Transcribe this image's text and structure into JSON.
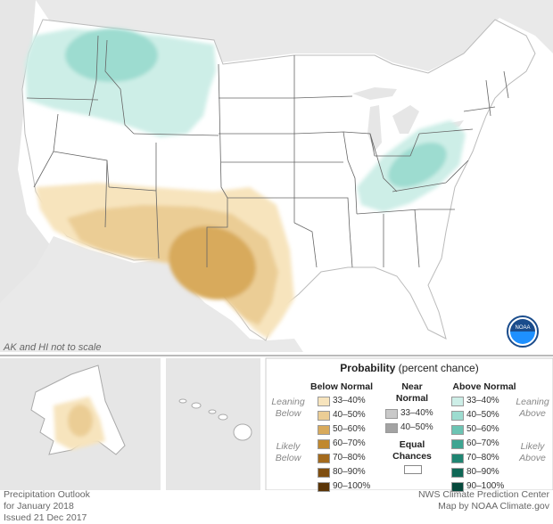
{
  "note": "AK and HI not to scale",
  "footer_left": [
    "Precipitation Outlook",
    "for January 2018",
    "Issued 21 Dec 2017"
  ],
  "footer_right": [
    "NWS Climate Prediction Center",
    "Map by NOAA Climate.gov"
  ],
  "legend": {
    "title_bold": "Probability",
    "title_rest": "(percent chance)",
    "below_header": "Below Normal",
    "near_header": [
      "Near",
      "Normal"
    ],
    "above_header": "Above Normal",
    "leaning_below": [
      "Leaning",
      "Below"
    ],
    "likely_below": [
      "Likely",
      "Below"
    ],
    "leaning_above": [
      "Leaning",
      "Above"
    ],
    "likely_above": [
      "Likely",
      "Above"
    ],
    "equal_chances": [
      "Equal",
      "Chances"
    ],
    "below": [
      {
        "label": "33–40%",
        "color": "#f7e4bd"
      },
      {
        "label": "40–50%",
        "color": "#ebcd95"
      },
      {
        "label": "50–60%",
        "color": "#d8aa5c"
      },
      {
        "label": "60–70%",
        "color": "#c0882f"
      },
      {
        "label": "70–80%",
        "color": "#a36a1d"
      },
      {
        "label": "80–90%",
        "color": "#7f4e10"
      },
      {
        "label": "90–100%",
        "color": "#5a3508"
      }
    ],
    "near": [
      {
        "label": "33–40%",
        "color": "#c9c9c9"
      },
      {
        "label": "40–50%",
        "color": "#a3a3a3"
      }
    ],
    "above": [
      {
        "label": "33–40%",
        "color": "#cdeee7"
      },
      {
        "label": "40–50%",
        "color": "#9ddcd0"
      },
      {
        "label": "50–60%",
        "color": "#6cc4b3"
      },
      {
        "label": "60–70%",
        "color": "#3ea592"
      },
      {
        "label": "70–80%",
        "color": "#1f8572"
      },
      {
        "label": "80–90%",
        "color": "#0f6756"
      },
      {
        "label": "90–100%",
        "color": "#06493c"
      }
    ]
  },
  "logo": {
    "text": "NOAA"
  }
}
